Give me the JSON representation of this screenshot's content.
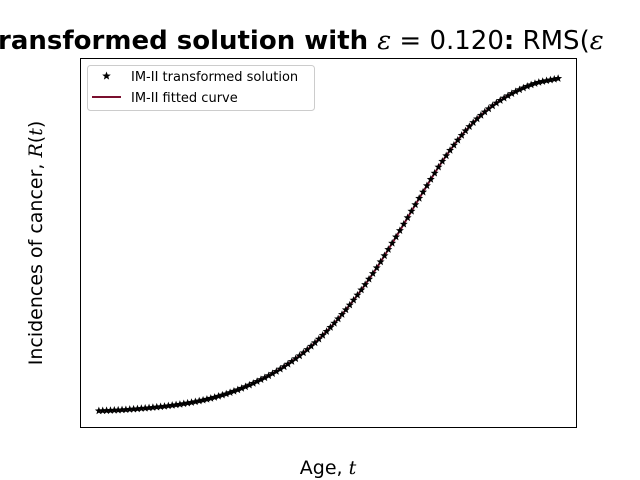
{
  "chart_data": {
    "type": "line",
    "title": {
      "part1": "ransformed solution with ",
      "epsilon_symbol": "ε",
      "equals": " = 0.120",
      "colon": ":",
      "part2": " RMS(",
      "epsilon_symbol_2": "ε"
    },
    "xlabel": {
      "text": "Age, ",
      "var": "t"
    },
    "ylabel": {
      "text": "Incidences of cancer, ",
      "var": "R",
      "paren_open": "(",
      "var_t": "t",
      "paren_close": ")"
    },
    "xticks_visible": false,
    "yticks_visible": false,
    "grid": false,
    "legend_position": "top-left",
    "xlim": [
      -0.04,
      1.04
    ],
    "ylim": [
      -0.05,
      1.06
    ],
    "series": [
      {
        "name": "IM-II transformed solution",
        "marker": "star",
        "color": "#000000",
        "style": "markers"
      },
      {
        "name": "IM-II fitted curve",
        "color": "#7a0f2e",
        "style": "line"
      }
    ],
    "x": [
      0.0,
      0.05,
      0.1,
      0.15,
      0.2,
      0.25,
      0.3,
      0.35,
      0.4,
      0.45,
      0.5,
      0.55,
      0.6,
      0.65,
      0.7,
      0.75,
      0.8,
      0.85,
      0.9,
      0.95,
      1.0
    ],
    "y": [
      0.0,
      0.003,
      0.008,
      0.015,
      0.025,
      0.04,
      0.062,
      0.092,
      0.13,
      0.18,
      0.245,
      0.325,
      0.42,
      0.53,
      0.645,
      0.755,
      0.845,
      0.91,
      0.955,
      0.985,
      1.0
    ]
  }
}
